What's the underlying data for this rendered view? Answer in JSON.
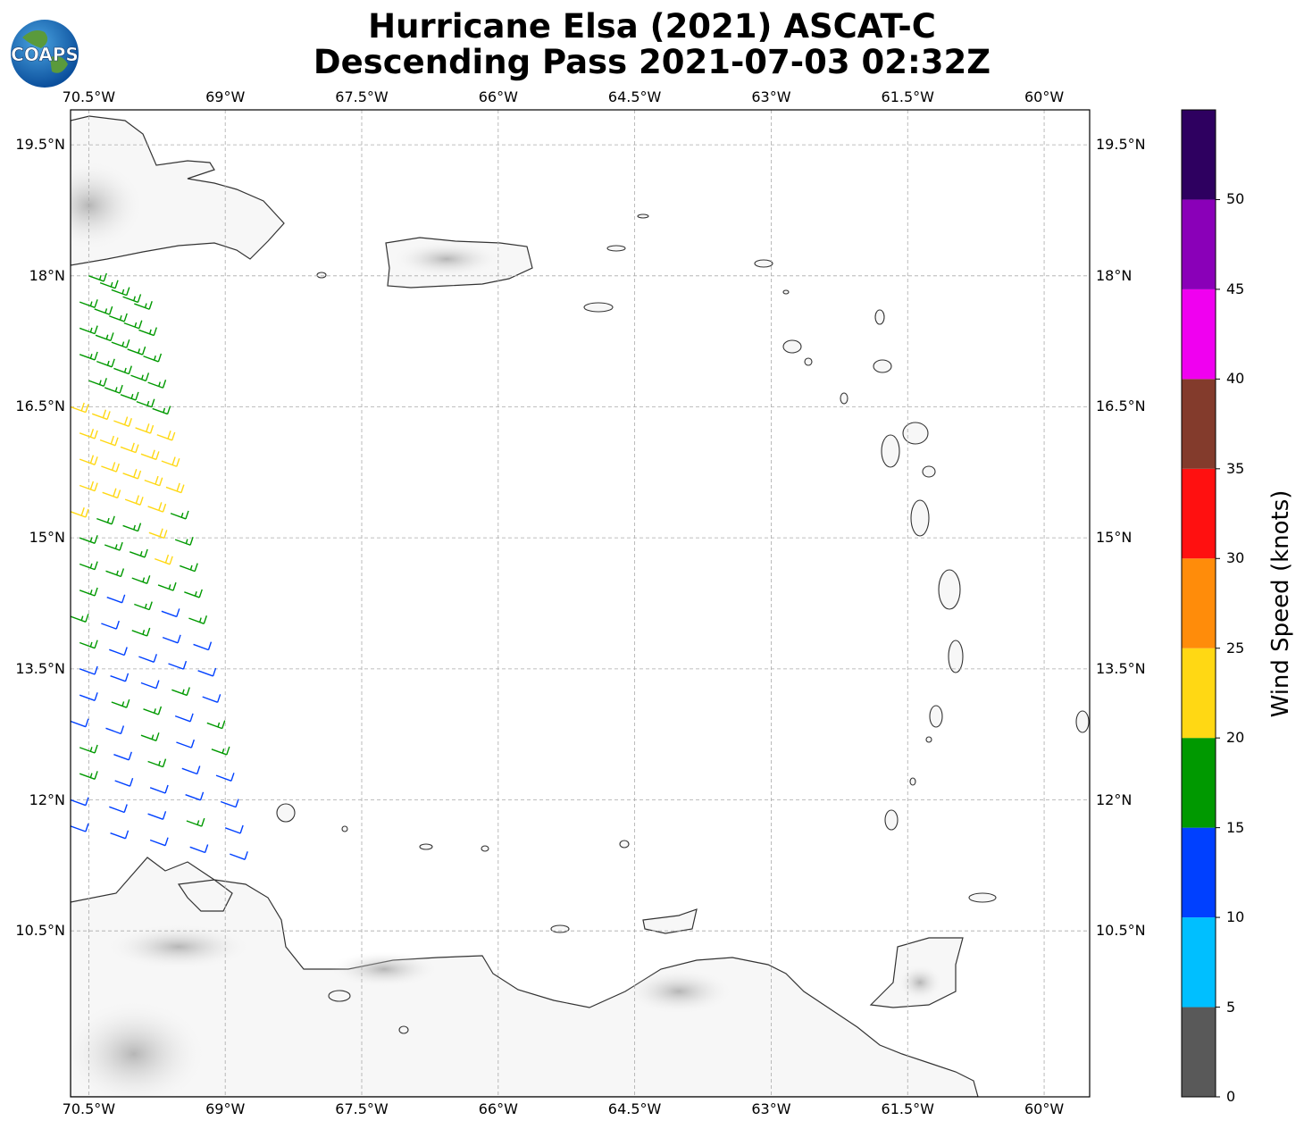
{
  "title": {
    "line1": "Hurricane Elsa (2021) ASCAT-C",
    "line2": "Descending Pass 2021-07-03 02:32Z"
  },
  "logo": {
    "text": "COAPS"
  },
  "map": {
    "lon_range": [
      -70.7,
      -59.5
    ],
    "lat_range": [
      8.6,
      19.9
    ],
    "lon_ticks": [
      "70.5°W",
      "69°W",
      "67.5°W",
      "66°W",
      "64.5°W",
      "63°W",
      "61.5°W",
      "60°W"
    ],
    "lon_values": [
      -70.5,
      -69,
      -67.5,
      -66,
      -64.5,
      -63,
      -61.5,
      -60
    ],
    "lat_ticks": [
      "19.5°N",
      "18°N",
      "16.5°N",
      "15°N",
      "13.5°N",
      "12°N",
      "10.5°N"
    ],
    "lat_values": [
      19.5,
      18,
      16.5,
      15,
      13.5,
      12,
      10.5
    ],
    "grid": true,
    "land_color": "#ffffff",
    "coast_color": "#333333",
    "terrain_shading": "grayscale"
  },
  "colorbar": {
    "label": "Wind Speed (knots)",
    "ticks": [
      "0",
      "5",
      "10",
      "15",
      "20",
      "25",
      "30",
      "35",
      "40",
      "45",
      "50"
    ],
    "bins": [
      {
        "from": 0,
        "to": 5,
        "color": "#595959"
      },
      {
        "from": 5,
        "to": 10,
        "color": "#00bfff"
      },
      {
        "from": 10,
        "to": 15,
        "color": "#0040ff"
      },
      {
        "from": 15,
        "to": 20,
        "color": "#009900"
      },
      {
        "from": 20,
        "to": 25,
        "color": "#ffd814"
      },
      {
        "from": 25,
        "to": 30,
        "color": "#ff8c0a"
      },
      {
        "from": 30,
        "to": 35,
        "color": "#ff1010"
      },
      {
        "from": 35,
        "to": 40,
        "color": "#833b2c"
      },
      {
        "from": 40,
        "to": 45,
        "color": "#f000f0"
      },
      {
        "from": 45,
        "to": 50,
        "color": "#8a00b8"
      },
      {
        "from": 50,
        "to": 55,
        "color": "#2e0060"
      }
    ]
  },
  "chart_data": {
    "type": "wind_barbs",
    "swath": {
      "description": "ASCAT-C descending pass wind vectors",
      "units": "knots",
      "rows": [
        {
          "lat": 18.0,
          "lon_start": -70.5,
          "lon_end": -70.0,
          "speed": 17,
          "dir": 100
        },
        {
          "lat": 17.7,
          "lon_start": -70.6,
          "lon_end": -69.95,
          "speed": 17,
          "dir": 100
        },
        {
          "lat": 17.4,
          "lon_start": -70.6,
          "lon_end": -69.9,
          "speed": 17,
          "dir": 100
        },
        {
          "lat": 17.1,
          "lon_start": -70.6,
          "lon_end": -69.85,
          "speed": 17,
          "dir": 100
        },
        {
          "lat": 16.8,
          "lon_start": -70.5,
          "lon_end": -69.8,
          "speed": 17,
          "dir": 100
        },
        {
          "lat": 16.5,
          "lon_start": -70.7,
          "lon_end": -69.75,
          "speed": 22,
          "dir": 105
        },
        {
          "lat": 16.2,
          "lon_start": -70.6,
          "lon_end": -69.7,
          "speed": 22,
          "dir": 105
        },
        {
          "lat": 15.9,
          "lon_start": -70.6,
          "lon_end": -69.65,
          "speed": 22,
          "dir": 105
        },
        {
          "lat": 15.6,
          "lon_start": -70.6,
          "lon_end": -69.6,
          "speed": 21,
          "dir": 105
        },
        {
          "lat": 15.3,
          "lon_start": -70.7,
          "lon_end": -69.55,
          "speed": 19,
          "dir": 105
        },
        {
          "lat": 15.0,
          "lon_start": -70.6,
          "lon_end": -69.5,
          "speed": 18,
          "dir": 105
        },
        {
          "lat": 14.7,
          "lon_start": -70.6,
          "lon_end": -69.45,
          "speed": 17,
          "dir": 105
        },
        {
          "lat": 14.4,
          "lon_start": -70.6,
          "lon_end": -69.4,
          "speed": 15,
          "dir": 105
        },
        {
          "lat": 14.1,
          "lon_start": -70.7,
          "lon_end": -69.35,
          "speed": 14,
          "dir": 105
        },
        {
          "lat": 13.8,
          "lon_start": -70.6,
          "lon_end": -69.3,
          "speed": 13,
          "dir": 105
        },
        {
          "lat": 13.5,
          "lon_start": -70.6,
          "lon_end": -69.25,
          "speed": 13,
          "dir": 105
        },
        {
          "lat": 13.2,
          "lon_start": -70.6,
          "lon_end": -69.2,
          "speed": 15,
          "dir": 105
        },
        {
          "lat": 12.9,
          "lon_start": -70.7,
          "lon_end": -69.15,
          "speed": 14,
          "dir": 105
        },
        {
          "lat": 12.6,
          "lon_start": -70.6,
          "lon_end": -69.1,
          "speed": 14,
          "dir": 105
        },
        {
          "lat": 12.3,
          "lon_start": -70.6,
          "lon_end": -69.05,
          "speed": 13,
          "dir": 105
        },
        {
          "lat": 12.0,
          "lon_start": -70.7,
          "lon_end": -69.0,
          "speed": 13,
          "dir": 105
        },
        {
          "lat": 11.7,
          "lon_start": -70.7,
          "lon_end": -68.95,
          "speed": 12,
          "dir": 105
        }
      ]
    }
  }
}
